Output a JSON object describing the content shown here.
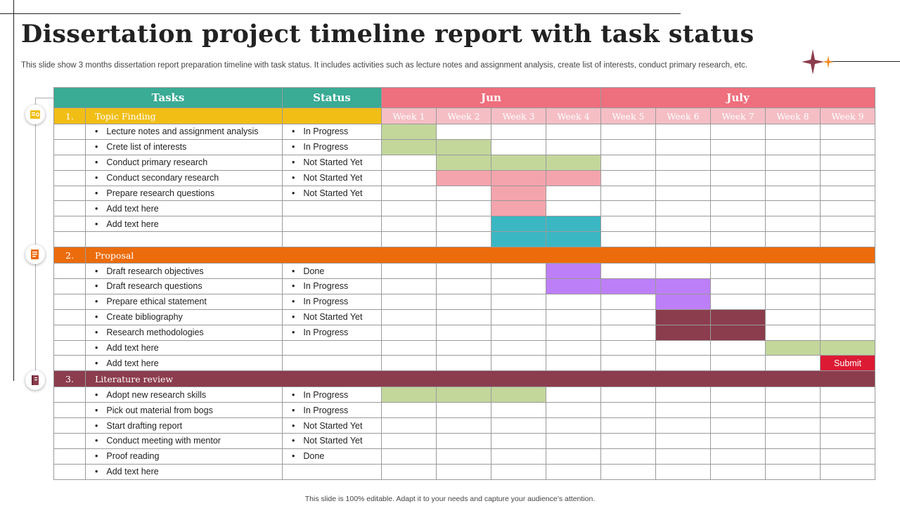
{
  "title": "Dissertation project timeline report with task status",
  "subtitle": "This slide show 3 months dissertation report preparation timeline with task status. It includes activities such as lecture notes and assignment analysis, create list of interests, conduct primary research, etc.",
  "footer": "This slide is 100% editable. Adapt it to your needs and capture your audience’s attention.",
  "colors": {
    "teal_header": "#3aab95",
    "pink_header": "#ee6f7d",
    "week_bg": "#f5bec5",
    "green": "#c3d79b",
    "pink": "#f4a4ac",
    "cyan": "#3bb7c3",
    "purple": "#bd7ff7",
    "maroon": "#8b3d4d",
    "submit": "#dc1a34",
    "topic": "#f1be16",
    "proposal": "#ec6c0c",
    "literature": "#8b3d4d"
  },
  "header": {
    "tasks": "Tasks",
    "status": "Status",
    "months": [
      {
        "label": "Jun",
        "span": 4
      },
      {
        "label": "July",
        "span": 5
      }
    ],
    "weeks": [
      "Week 1",
      "Week 2",
      "Week 3",
      "Week 4",
      "Week 5",
      "Week 6",
      "Week 7",
      "Week 8",
      "Week 9"
    ]
  },
  "sections": [
    {
      "num": "1.",
      "name": "Topic Finding",
      "color": "topic",
      "icon": "document-icon",
      "inline": true,
      "tasks": [
        {
          "task": "Lecture notes and assignment analysis",
          "status": "In Progress",
          "bars": [
            {
              "from": 1,
              "to": 1,
              "color": "green"
            }
          ]
        },
        {
          "task": "Crete list of interests",
          "status": "In Progress",
          "bars": [
            {
              "from": 1,
              "to": 2,
              "color": "green"
            }
          ]
        },
        {
          "task": "Conduct primary research",
          "status": "Not Started Yet",
          "bars": [
            {
              "from": 2,
              "to": 4,
              "color": "green"
            }
          ]
        },
        {
          "task": "Conduct secondary  research",
          "status": "Not Started Yet",
          "bars": [
            {
              "from": 2,
              "to": 4,
              "color": "pink"
            }
          ]
        },
        {
          "task": "Prepare research questions",
          "status": "Not Started Yet",
          "bars": [
            {
              "from": 3,
              "to": 3,
              "color": "pink"
            }
          ]
        },
        {
          "task": "Add text here",
          "status": "",
          "bars": [
            {
              "from": 3,
              "to": 3,
              "color": "pink"
            }
          ]
        },
        {
          "task": "Add text here",
          "status": "",
          "bars": [
            {
              "from": 3,
              "to": 4,
              "color": "cyan"
            }
          ]
        },
        {
          "task": "",
          "status": "",
          "bars": [
            {
              "from": 3,
              "to": 4,
              "color": "cyan"
            }
          ]
        }
      ]
    },
    {
      "num": "2.",
      "name": "Proposal",
      "color": "proposal",
      "icon": "clipboard-icon",
      "inline": false,
      "tasks": [
        {
          "task": "Draft research objectives",
          "status": "Done",
          "bars": [
            {
              "from": 4,
              "to": 4,
              "color": "purple"
            }
          ]
        },
        {
          "task": "Draft research questions",
          "status": "In Progress",
          "bars": [
            {
              "from": 4,
              "to": 6,
              "color": "purple"
            }
          ]
        },
        {
          "task": "Prepare ethical statement",
          "status": "In Progress",
          "bars": [
            {
              "from": 6,
              "to": 6,
              "color": "purple"
            }
          ]
        },
        {
          "task": "Create bibliography",
          "status": "Not Started Yet",
          "bars": [
            {
              "from": 6,
              "to": 7,
              "color": "maroon"
            }
          ]
        },
        {
          "task": "Research methodologies",
          "status": "In Progress",
          "bars": [
            {
              "from": 6,
              "to": 7,
              "color": "maroon"
            }
          ]
        },
        {
          "task": "Add text here",
          "status": "",
          "bars": [
            {
              "from": 8,
              "to": 9,
              "color": "green"
            }
          ]
        },
        {
          "task": "Add text here",
          "status": "",
          "bars": [
            {
              "from": 9,
              "to": 9,
              "color": "submit",
              "label": "Submit"
            }
          ]
        }
      ]
    },
    {
      "num": "3.",
      "name": "Literature  review",
      "color": "literature",
      "icon": "book-icon",
      "inline": false,
      "tasks": [
        {
          "task": "Adopt new research skills",
          "status": "In Progress",
          "bars": [
            {
              "from": 1,
              "to": 3,
              "color": "green"
            }
          ]
        },
        {
          "task": "Pick out material from bogs",
          "status": "In Progress",
          "bars": []
        },
        {
          "task": "Start drafting report",
          "status": "Not Started Yet",
          "bars": []
        },
        {
          "task": "Conduct meeting with mentor",
          "status": "Not Started Yet",
          "bars": []
        },
        {
          "task": "Proof reading",
          "status": "Done",
          "bars": []
        },
        {
          "task": "Add text here",
          "status": "",
          "bars": []
        }
      ]
    }
  ]
}
